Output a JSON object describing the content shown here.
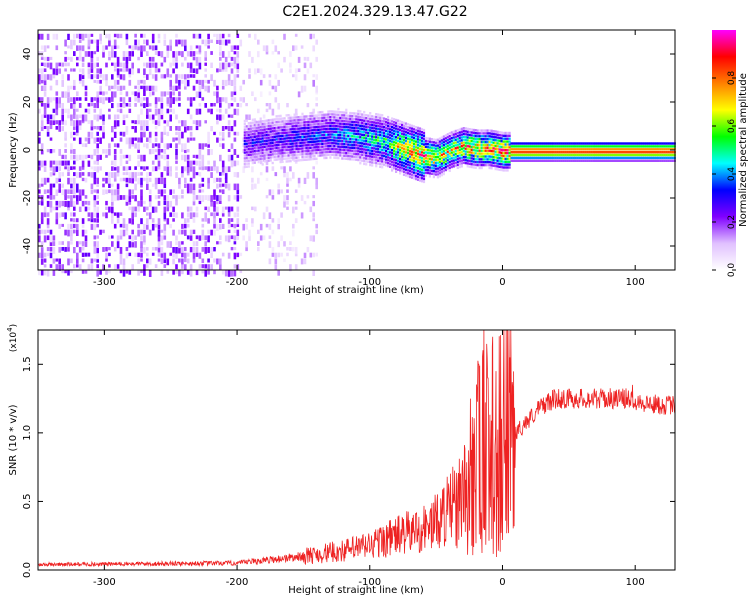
{
  "title": "C2E1.2024.329.13.47.G22",
  "chart_data": [
    {
      "type": "heatmap",
      "xlabel": "Height of straight line (km)",
      "ylabel": "Frequency (Hz)",
      "xlim": [
        -350,
        130
      ],
      "ylim": [
        -50,
        50
      ],
      "x_ticks": [
        -300,
        -200,
        -100,
        0,
        100
      ],
      "y_ticks": [
        -40,
        -20,
        0,
        20,
        40
      ],
      "colorbar": {
        "label": "Normalized spectral amplitude",
        "range": [
          0,
          1
        ],
        "ticks": [
          "0.0",
          "0.2",
          "0.4",
          "0.6",
          "0.8"
        ],
        "colormap": [
          "#ffffff",
          "#e0c0ff",
          "#8000ff",
          "#0000ff",
          "#00ffff",
          "#00ff00",
          "#ffff00",
          "#ff8000",
          "#ff0000",
          "#ff00ff"
        ]
      },
      "ridge": {
        "x": [
          -195,
          -170,
          -150,
          -130,
          -110,
          -90,
          -75,
          -60,
          -50,
          -40,
          -30,
          -20,
          -10,
          0,
          130
        ],
        "freq": [
          3,
          5,
          6,
          7,
          6,
          4,
          1,
          -2,
          -3,
          0,
          2,
          1,
          1,
          0,
          0
        ],
        "amplitude": [
          0.3,
          0.32,
          0.35,
          0.4,
          0.45,
          0.55,
          0.75,
          0.85,
          0.8,
          0.75,
          0.85,
          0.85,
          0.85,
          0.9,
          0.9
        ]
      },
      "noise_region": {
        "x": [
          -350,
          -140
        ],
        "freq": [
          -50,
          50
        ],
        "amplitude": 0.15
      }
    },
    {
      "type": "line",
      "xlabel": "Height of straight line (km)",
      "ylabel": "SNR (10 * v/v)",
      "y_scale_label": "(x10",
      "y_scale_exp": "4",
      "xlim": [
        -350,
        130
      ],
      "ylim": [
        0,
        17500
      ],
      "x_ticks": [
        -300,
        -200,
        -100,
        0,
        100
      ],
      "y_ticks": [
        0,
        5000,
        10000,
        15000
      ],
      "y_tick_labels": [
        "0.0",
        "0.5",
        "1.0",
        "1.5"
      ],
      "color": "#ee2222",
      "envelope": {
        "x": [
          -350,
          -200,
          -180,
          -150,
          -120,
          -100,
          -80,
          -60,
          -50,
          -40,
          -30,
          -25,
          -20,
          -15,
          -10,
          -5,
          0,
          10,
          20,
          30,
          40,
          50,
          60,
          80,
          95,
          100,
          110,
          130
        ],
        "y": [
          400,
          500,
          700,
          1000,
          1400,
          1800,
          2500,
          3000,
          3500,
          4500,
          5500,
          7000,
          8000,
          8500,
          9000,
          9000,
          9500,
          10000,
          11000,
          12000,
          12500,
          12500,
          12500,
          12500,
          12500,
          12400,
          12100,
          12000
        ]
      },
      "spikes": [
        {
          "x": -40,
          "y": 5000
        },
        {
          "x": -30,
          "y": 8000
        },
        {
          "x": -24,
          "y": 12500
        },
        {
          "x": -18,
          "y": 15000
        },
        {
          "x": -14,
          "y": 17500
        },
        {
          "x": -11,
          "y": 14000
        },
        {
          "x": -5,
          "y": 14500
        },
        {
          "x": 2,
          "y": 9500
        },
        {
          "x": 98,
          "y": 13500
        }
      ]
    }
  ]
}
